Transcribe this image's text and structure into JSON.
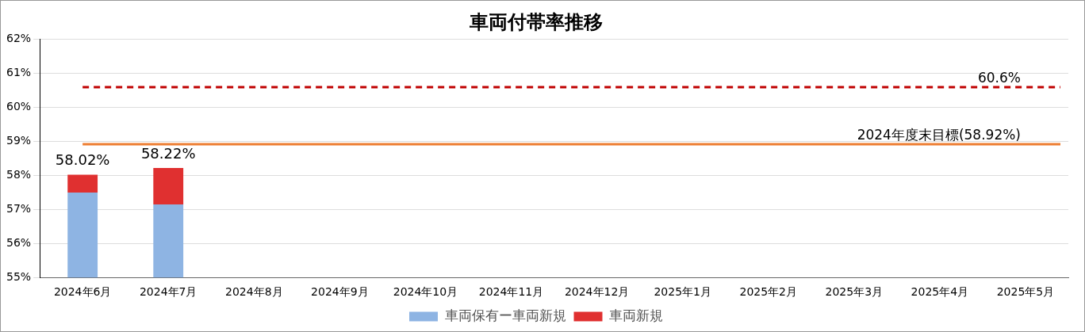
{
  "chart_data": {
    "type": "bar",
    "title": "車両付帯率推移",
    "categories": [
      "2024年6月",
      "2024年7月",
      "2024年8月",
      "2024年9月",
      "2024年10月",
      "2024年11月",
      "2024年12月",
      "2025年1月",
      "2025年2月",
      "2025年3月",
      "2025年4月",
      "2025年5月"
    ],
    "series": [
      {
        "name": "車両保有ー車両新規",
        "color": "#8eb4e3",
        "values": [
          57.5,
          57.15,
          null,
          null,
          null,
          null,
          null,
          null,
          null,
          null,
          null,
          null
        ]
      },
      {
        "name": "車両新規",
        "color": "#e03030",
        "base": [
          57.5,
          57.15,
          null,
          null,
          null,
          null,
          null,
          null,
          null,
          null,
          null,
          null
        ],
        "values": [
          0.52,
          1.07,
          null,
          null,
          null,
          null,
          null,
          null,
          null,
          null,
          null,
          null
        ]
      }
    ],
    "totals": [
      "58.02%",
      "58.22%",
      null,
      null,
      null,
      null,
      null,
      null,
      null,
      null,
      null,
      null
    ],
    "ylim": [
      55,
      62
    ],
    "yticks": [
      {
        "value": 55,
        "label": "55%"
      },
      {
        "value": 56,
        "label": "56%"
      },
      {
        "value": 57,
        "label": "57%"
      },
      {
        "value": 58,
        "label": "58%"
      },
      {
        "value": 59,
        "label": "59%"
      },
      {
        "value": 60,
        "label": "60%"
      },
      {
        "value": 61,
        "label": "61%"
      },
      {
        "value": 62,
        "label": "62%"
      }
    ],
    "ref_lines": [
      {
        "axis": "y",
        "value": 60.6,
        "label": "60.6%",
        "color": "#c00000",
        "line_style": "dashed"
      },
      {
        "axis": "y",
        "value": 58.92,
        "label": "2024年度末目標(58.92%)",
        "color": "#ed7d31",
        "line_style": "solid"
      }
    ],
    "grid": "y",
    "legend": "bottom"
  }
}
